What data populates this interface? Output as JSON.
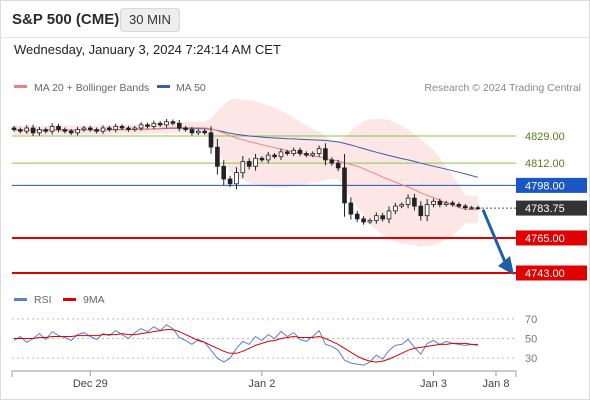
{
  "header": {
    "title": "S&P 500 (CME)",
    "interval": "30 MIN"
  },
  "timestamp": "Wednesday, January 3, 2024 7:24:14 AM CET",
  "legend": {
    "items": [
      {
        "label": "MA 20 + Bollinger Bands",
        "color": "#f08080"
      },
      {
        "label": "MA 50",
        "color": "#3a5ea8"
      }
    ],
    "rsi_items": [
      {
        "label": "RSI",
        "color": "#5b7fd6"
      },
      {
        "label": "9MA",
        "color": "#e00000"
      }
    ]
  },
  "copyright": "Research © 2024 Trading Central",
  "colors": {
    "resistance": "#8bc34a",
    "pivot": "#1a56c4",
    "support": "#e00000",
    "arrow": "#1f5fa6",
    "candle_up": "#ffffff",
    "candle_down": "#222222",
    "band_fill": "#fde2e2"
  },
  "chart_data": {
    "type": "candlestick",
    "x_ticks": [
      "Dec 29",
      "Jan 2",
      "Jan 3",
      "Jan 8"
    ],
    "price_levels": [
      {
        "value": 4829.0,
        "label": "4829.00",
        "kind": "resistance"
      },
      {
        "value": 4812.0,
        "label": "4812.00",
        "kind": "resistance"
      },
      {
        "value": 4798.0,
        "label": "4798.00",
        "kind": "pivot"
      },
      {
        "value": 4783.75,
        "label": "4783.75",
        "kind": "last"
      },
      {
        "value": 4765.0,
        "label": "4765.00",
        "kind": "support"
      },
      {
        "value": 4743.0,
        "label": "4743.00",
        "kind": "support"
      }
    ],
    "forecast": {
      "from": 4784,
      "to": 4743
    },
    "close": [
      4833,
      4832,
      4834,
      4831,
      4833,
      4832,
      4835,
      4833,
      4832,
      4831,
      4833,
      4834,
      4833,
      4832,
      4834,
      4833,
      4835,
      4834,
      4833,
      4834,
      4836,
      4835,
      4837,
      4836,
      4838,
      4837,
      4834,
      4833,
      4831,
      4832,
      4831,
      4822,
      4810,
      4802,
      4799,
      4806,
      4813,
      4810,
      4815,
      4814,
      4817,
      4816,
      4819,
      4818,
      4820,
      4818,
      4817,
      4818,
      4821,
      4814,
      4812,
      4809,
      4787,
      4780,
      4777,
      4775,
      4776,
      4779,
      4777,
      4782,
      4785,
      4786,
      4790,
      4785,
      4779,
      4786,
      4788,
      4786,
      4787,
      4786,
      4785,
      4784,
      4784,
      4783.75
    ],
    "rsi": {
      "ticks": [
        70,
        50,
        30
      ],
      "ylim": [
        20,
        80
      ],
      "rsi": [
        48,
        52,
        46,
        50,
        55,
        49,
        57,
        53,
        51,
        48,
        54,
        56,
        52,
        49,
        55,
        53,
        58,
        54,
        50,
        56,
        60,
        57,
        62,
        58,
        64,
        60,
        51,
        48,
        44,
        49,
        46,
        38,
        30,
        26,
        30,
        40,
        47,
        44,
        52,
        48,
        54,
        50,
        57,
        52,
        56,
        49,
        47,
        52,
        58,
        44,
        42,
        38,
        28,
        25,
        24,
        23,
        26,
        33,
        29,
        38,
        43,
        44,
        49,
        41,
        34,
        45,
        48,
        44,
        47,
        45,
        44,
        43,
        44,
        43
      ],
      "ma9": [
        50,
        50,
        50,
        50,
        51,
        51,
        52,
        52,
        52,
        52,
        53,
        53,
        53,
        53,
        54,
        54,
        54,
        55,
        54,
        54,
        55,
        56,
        57,
        58,
        59,
        59,
        57,
        54,
        51,
        48,
        46,
        43,
        40,
        37,
        35,
        35,
        37,
        40,
        43,
        45,
        47,
        48,
        50,
        51,
        52,
        51,
        51,
        51,
        52,
        50,
        47,
        44,
        40,
        36,
        32,
        29,
        27,
        26,
        27,
        29,
        32,
        35,
        38,
        40,
        41,
        42,
        43,
        44,
        44,
        45,
        45,
        45,
        44,
        44
      ]
    }
  }
}
